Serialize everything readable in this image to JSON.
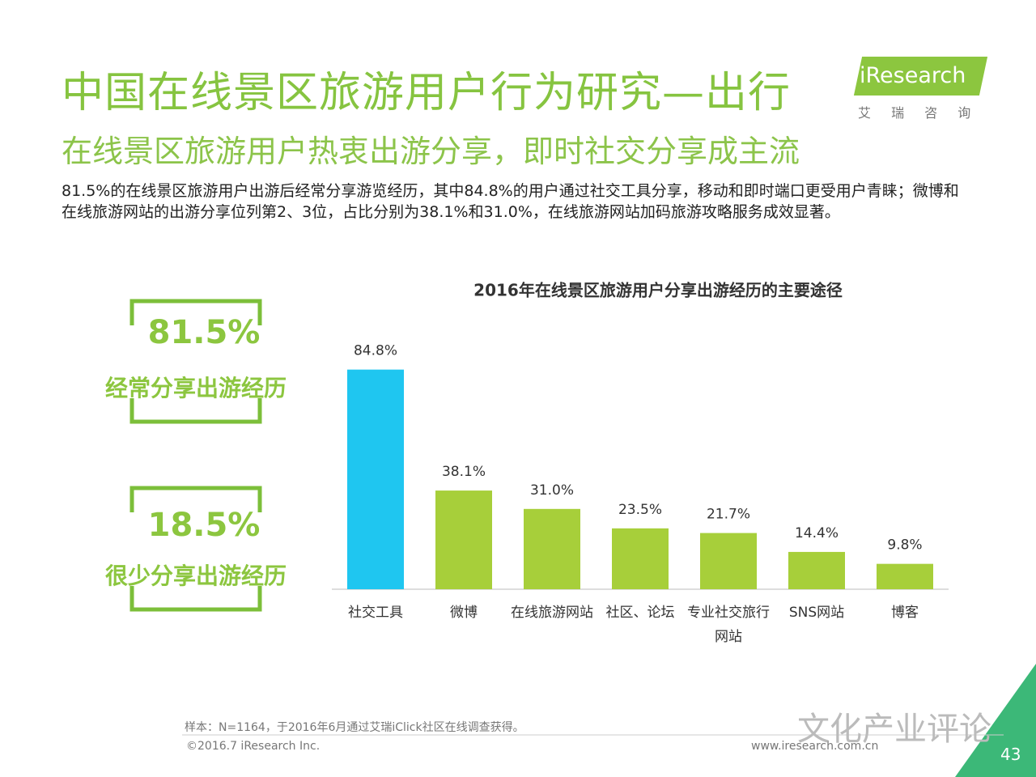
{
  "header": {
    "title": "中国在线景区旅游用户行为研究—出行",
    "subtitle": "在线景区旅游用户热衷出游分享，即时社交分享成主流",
    "description": "81.5%的在线景区旅游用户出游后经常分享游览经历，其中84.8%的用户通过社交工具分享，移动和即时端口更受用户青睐；微博和在线旅游网站的出游分享位列第2、3位，占比分别为38.1%和31.0%，在线旅游网站加码旅游攻略服务成效显著。"
  },
  "logo": {
    "name": "iResearch",
    "tagline": "艾 瑞 咨 询"
  },
  "highlights": [
    {
      "value": "81.5%",
      "label": "经常分享出游经历"
    },
    {
      "value": "18.5%",
      "label": "很少分享出游经历"
    }
  ],
  "chart_data": {
    "type": "bar",
    "title": "2016年在线景区旅游用户分享出游经历的主要途径",
    "categories": [
      "社交工具",
      "微博",
      "在线旅游网站",
      "社区、论坛",
      "专业社交旅行网站",
      "SNS网站",
      "博客"
    ],
    "values": [
      84.8,
      38.1,
      31.0,
      23.5,
      21.7,
      14.4,
      9.8
    ],
    "value_labels": [
      "84.8%",
      "38.1%",
      "31.0%",
      "23.5%",
      "21.7%",
      "14.4%",
      "9.8%"
    ],
    "colors": [
      "#1fc6f0",
      "#a7cf3a",
      "#a7cf3a",
      "#a7cf3a",
      "#a7cf3a",
      "#a7cf3a",
      "#a7cf3a"
    ]
  },
  "footer": {
    "note": "样本：N=1164，于2016年6月通过艾瑞iClick社区在线调查获得。",
    "copyright": "©2016.7 iResearch Inc.",
    "website": "www.iresearch.com.cn",
    "watermark": "文化产业评论",
    "page": "43"
  }
}
